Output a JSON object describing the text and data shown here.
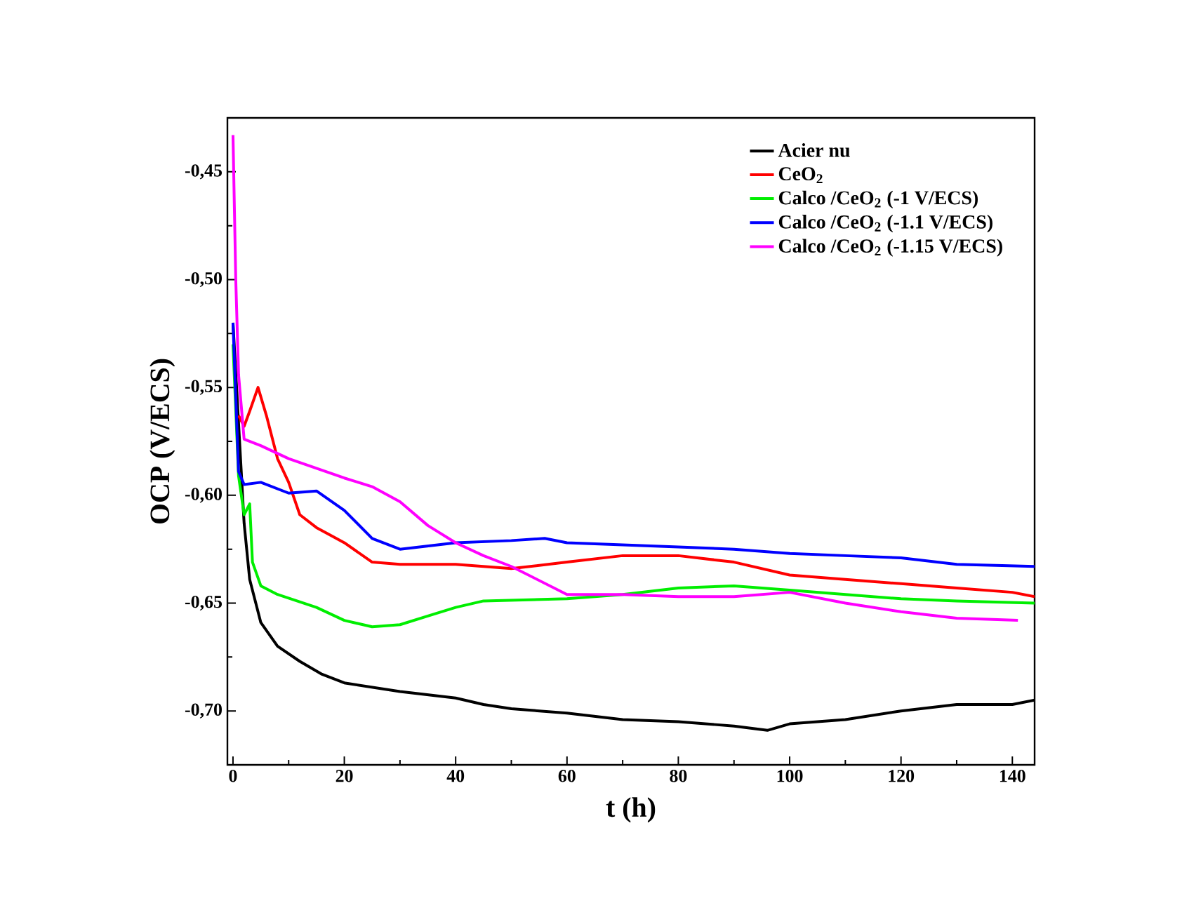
{
  "chart_data": {
    "type": "line",
    "xlabel": "t (h)",
    "ylabel": "OCP (V/ECS)",
    "xlim": [
      -1,
      144
    ],
    "ylim": [
      -0.725,
      -0.425
    ],
    "xticks": [
      0,
      20,
      40,
      60,
      80,
      100,
      120,
      140
    ],
    "yticks": [
      {
        "value": -0.7,
        "label": "-0,70"
      },
      {
        "value": -0.65,
        "label": "-0,65"
      },
      {
        "value": -0.6,
        "label": "-0,60"
      },
      {
        "value": -0.55,
        "label": "-0,55"
      },
      {
        "value": -0.5,
        "label": "-0,50"
      },
      {
        "value": -0.45,
        "label": "-0,45"
      }
    ],
    "legend": "top right",
    "line_style": "solid",
    "series": [
      {
        "name": "Acier nu",
        "color": "#000000",
        "x": [
          0,
          2,
          3,
          5,
          8,
          12,
          16,
          20,
          30,
          40,
          45,
          50,
          60,
          70,
          80,
          90,
          96,
          100,
          110,
          120,
          130,
          140,
          144
        ],
        "values": [
          -0.52,
          -0.613,
          -0.639,
          -0.659,
          -0.67,
          -0.677,
          -0.683,
          -0.687,
          -0.691,
          -0.694,
          -0.697,
          -0.699,
          -0.701,
          -0.704,
          -0.705,
          -0.707,
          -0.709,
          -0.706,
          -0.704,
          -0.7,
          -0.697,
          -0.697,
          -0.695
        ]
      },
      {
        "name": "CeO$_{2}$",
        "color": "#ff0000",
        "x": [
          1,
          2,
          3,
          4.5,
          6,
          8,
          10,
          12,
          15,
          20,
          25,
          30,
          40,
          50,
          60,
          70,
          80,
          90,
          100,
          110,
          120,
          130,
          140,
          144
        ],
        "values": [
          -0.563,
          -0.568,
          -0.561,
          -0.55,
          -0.563,
          -0.583,
          -0.594,
          -0.609,
          -0.615,
          -0.622,
          -0.631,
          -0.632,
          -0.632,
          -0.634,
          -0.631,
          -0.628,
          -0.628,
          -0.631,
          -0.637,
          -0.639,
          -0.641,
          -0.643,
          -0.645,
          -0.647
        ]
      },
      {
        "name": "Calco /CeO$_{2}$ (-1 V/ECS)",
        "color": "#00ee00",
        "x": [
          0,
          1,
          2,
          3,
          3.5,
          5,
          8,
          15,
          20,
          25,
          30,
          35,
          40,
          45,
          60,
          70,
          80,
          90,
          100,
          110,
          120,
          130,
          144
        ],
        "values": [
          -0.53,
          -0.591,
          -0.609,
          -0.604,
          -0.631,
          -0.642,
          -0.646,
          -0.652,
          -0.658,
          -0.661,
          -0.66,
          -0.656,
          -0.652,
          -0.649,
          -0.648,
          -0.646,
          -0.643,
          -0.642,
          -0.644,
          -0.646,
          -0.648,
          -0.649,
          -0.65
        ]
      },
      {
        "name": "Calco /CeO$_{2}$ (-1.1 V/ECS)",
        "color": "#0000ff",
        "x": [
          0,
          1,
          2,
          5,
          10,
          15,
          20,
          25,
          30,
          40,
          50,
          56,
          60,
          70,
          80,
          90,
          100,
          110,
          120,
          130,
          144
        ],
        "values": [
          -0.52,
          -0.589,
          -0.595,
          -0.594,
          -0.599,
          -0.598,
          -0.607,
          -0.62,
          -0.625,
          -0.622,
          -0.621,
          -0.62,
          -0.622,
          -0.623,
          -0.624,
          -0.625,
          -0.627,
          -0.628,
          -0.629,
          -0.632,
          -0.633
        ]
      },
      {
        "name": "Calco /CeO$_{2}$ (-1.15 V/ECS)",
        "color": "#ff00ff",
        "x": [
          0,
          0.5,
          1,
          2,
          5,
          10,
          20,
          25,
          30,
          35,
          40,
          45,
          50,
          60,
          70,
          80,
          90,
          100,
          110,
          120,
          130,
          141
        ],
        "values": [
          -0.433,
          -0.5,
          -0.544,
          -0.574,
          -0.577,
          -0.583,
          -0.592,
          -0.596,
          -0.603,
          -0.614,
          -0.622,
          -0.628,
          -0.633,
          -0.646,
          -0.646,
          -0.647,
          -0.647,
          -0.645,
          -0.65,
          -0.654,
          -0.657,
          -0.658
        ]
      }
    ]
  }
}
